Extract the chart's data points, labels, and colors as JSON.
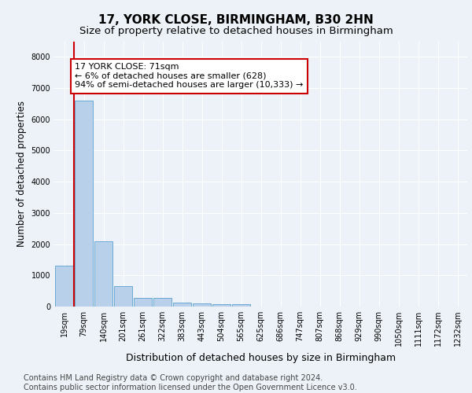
{
  "title": "17, YORK CLOSE, BIRMINGHAM, B30 2HN",
  "subtitle": "Size of property relative to detached houses in Birmingham",
  "xlabel": "Distribution of detached houses by size in Birmingham",
  "ylabel": "Number of detached properties",
  "categories": [
    "19sqm",
    "79sqm",
    "140sqm",
    "201sqm",
    "261sqm",
    "322sqm",
    "383sqm",
    "443sqm",
    "504sqm",
    "565sqm",
    "625sqm",
    "686sqm",
    "747sqm",
    "807sqm",
    "868sqm",
    "929sqm",
    "990sqm",
    "1050sqm",
    "1111sqm",
    "1172sqm",
    "1232sqm"
  ],
  "values": [
    1310,
    6600,
    2080,
    660,
    280,
    270,
    120,
    100,
    65,
    65,
    0,
    0,
    0,
    0,
    0,
    0,
    0,
    0,
    0,
    0,
    0
  ],
  "bar_color": "#b8d0ea",
  "bar_edge_color": "#6aaad4",
  "property_line_color": "#cc0000",
  "annotation_line1": "17 YORK CLOSE: 71sqm",
  "annotation_line2": "← 6% of detached houses are smaller (628)",
  "annotation_line3": "94% of semi-detached houses are larger (10,333) →",
  "annotation_box_facecolor": "#ffffff",
  "annotation_box_edgecolor": "#cc0000",
  "ylim": [
    0,
    8500
  ],
  "yticks": [
    0,
    1000,
    2000,
    3000,
    4000,
    5000,
    6000,
    7000,
    8000
  ],
  "background_color": "#edf2f9",
  "grid_color": "#ffffff",
  "title_fontsize": 11,
  "subtitle_fontsize": 9.5,
  "ylabel_fontsize": 8.5,
  "xlabel_fontsize": 9,
  "tick_fontsize": 7,
  "annotation_fontsize": 8,
  "footer_text": "Contains HM Land Registry data © Crown copyright and database right 2024.\nContains public sector information licensed under the Open Government Licence v3.0.",
  "footer_fontsize": 7
}
